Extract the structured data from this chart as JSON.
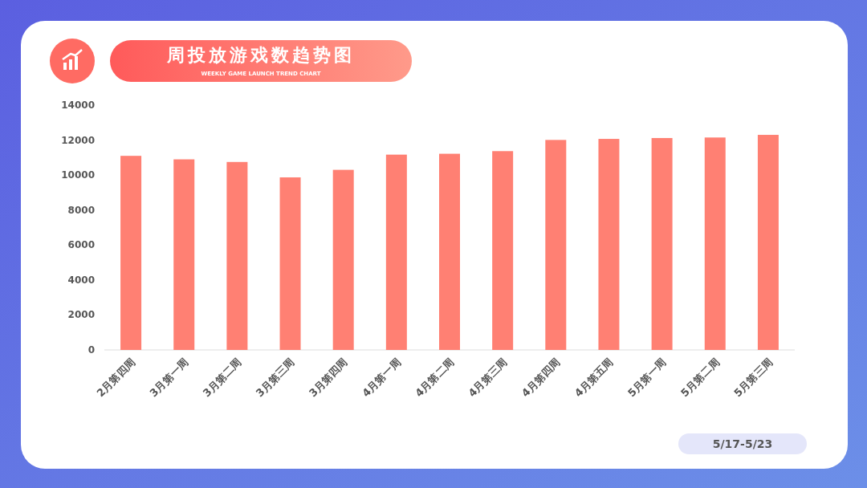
{
  "chart_data": {
    "type": "bar",
    "title": "周投放游戏数趋势图",
    "subtitle": "WEEKLY GAME LAUNCH TREND CHART",
    "categories": [
      "2月第四周",
      "3月第一周",
      "3月第二周",
      "3月第三周",
      "3月第四周",
      "4月第一周",
      "4月第二周",
      "4月第三周",
      "4月第四周",
      "4月第五周",
      "5月第一周",
      "5月第二周",
      "5月第三周"
    ],
    "values": [
      11100,
      10900,
      10750,
      9870,
      10300,
      11170,
      11220,
      11370,
      12010,
      12070,
      12120,
      12150,
      12300
    ],
    "color": "#ff8073",
    "ylim": [
      0,
      14000
    ],
    "yticks": [
      0,
      2000,
      4000,
      6000,
      8000,
      10000,
      12000,
      14000
    ],
    "grid": false,
    "annotations": [
      "5/17-5/23"
    ]
  }
}
